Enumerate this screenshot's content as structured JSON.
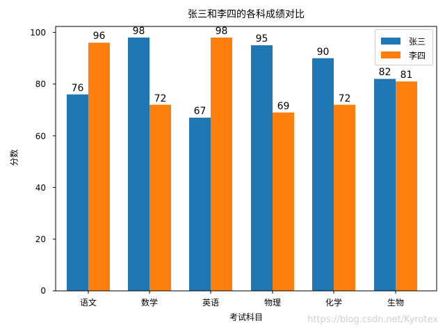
{
  "chart": {
    "title": "张三和李四的各科成绩对比",
    "xlabel": "考试科目",
    "ylabel": "分数",
    "legend": [
      "张三",
      "李四"
    ],
    "yticks": [
      "0",
      "20",
      "40",
      "60",
      "80",
      "100"
    ],
    "categories": [
      "语文",
      "数学",
      "英语",
      "物理",
      "化学",
      "生物"
    ],
    "values_a": [
      "76",
      "98",
      "67",
      "95",
      "90",
      "82"
    ],
    "values_b": [
      "96",
      "72",
      "98",
      "69",
      "72",
      "81"
    ],
    "colors": {
      "series_a": "#1f77b4",
      "series_b": "#ff7f0e"
    },
    "watermark": "https://blog.csdn.net/Kyrotex"
  },
  "chart_data": {
    "type": "bar",
    "title": "张三和李四的各科成绩对比",
    "xlabel": "考试科目",
    "ylabel": "分数",
    "categories": [
      "语文",
      "数学",
      "英语",
      "物理",
      "化学",
      "生物"
    ],
    "series": [
      {
        "name": "张三",
        "color": "#1f77b4",
        "values": [
          76,
          98,
          67,
          95,
          90,
          82
        ]
      },
      {
        "name": "李四",
        "color": "#ff7f0e",
        "values": [
          96,
          72,
          98,
          69,
          72,
          81
        ]
      }
    ],
    "ylim": [
      0,
      103
    ],
    "yticks": [
      0,
      20,
      40,
      60,
      80,
      100
    ],
    "grid": false,
    "legend_position": "upper right",
    "data_labels": true
  }
}
